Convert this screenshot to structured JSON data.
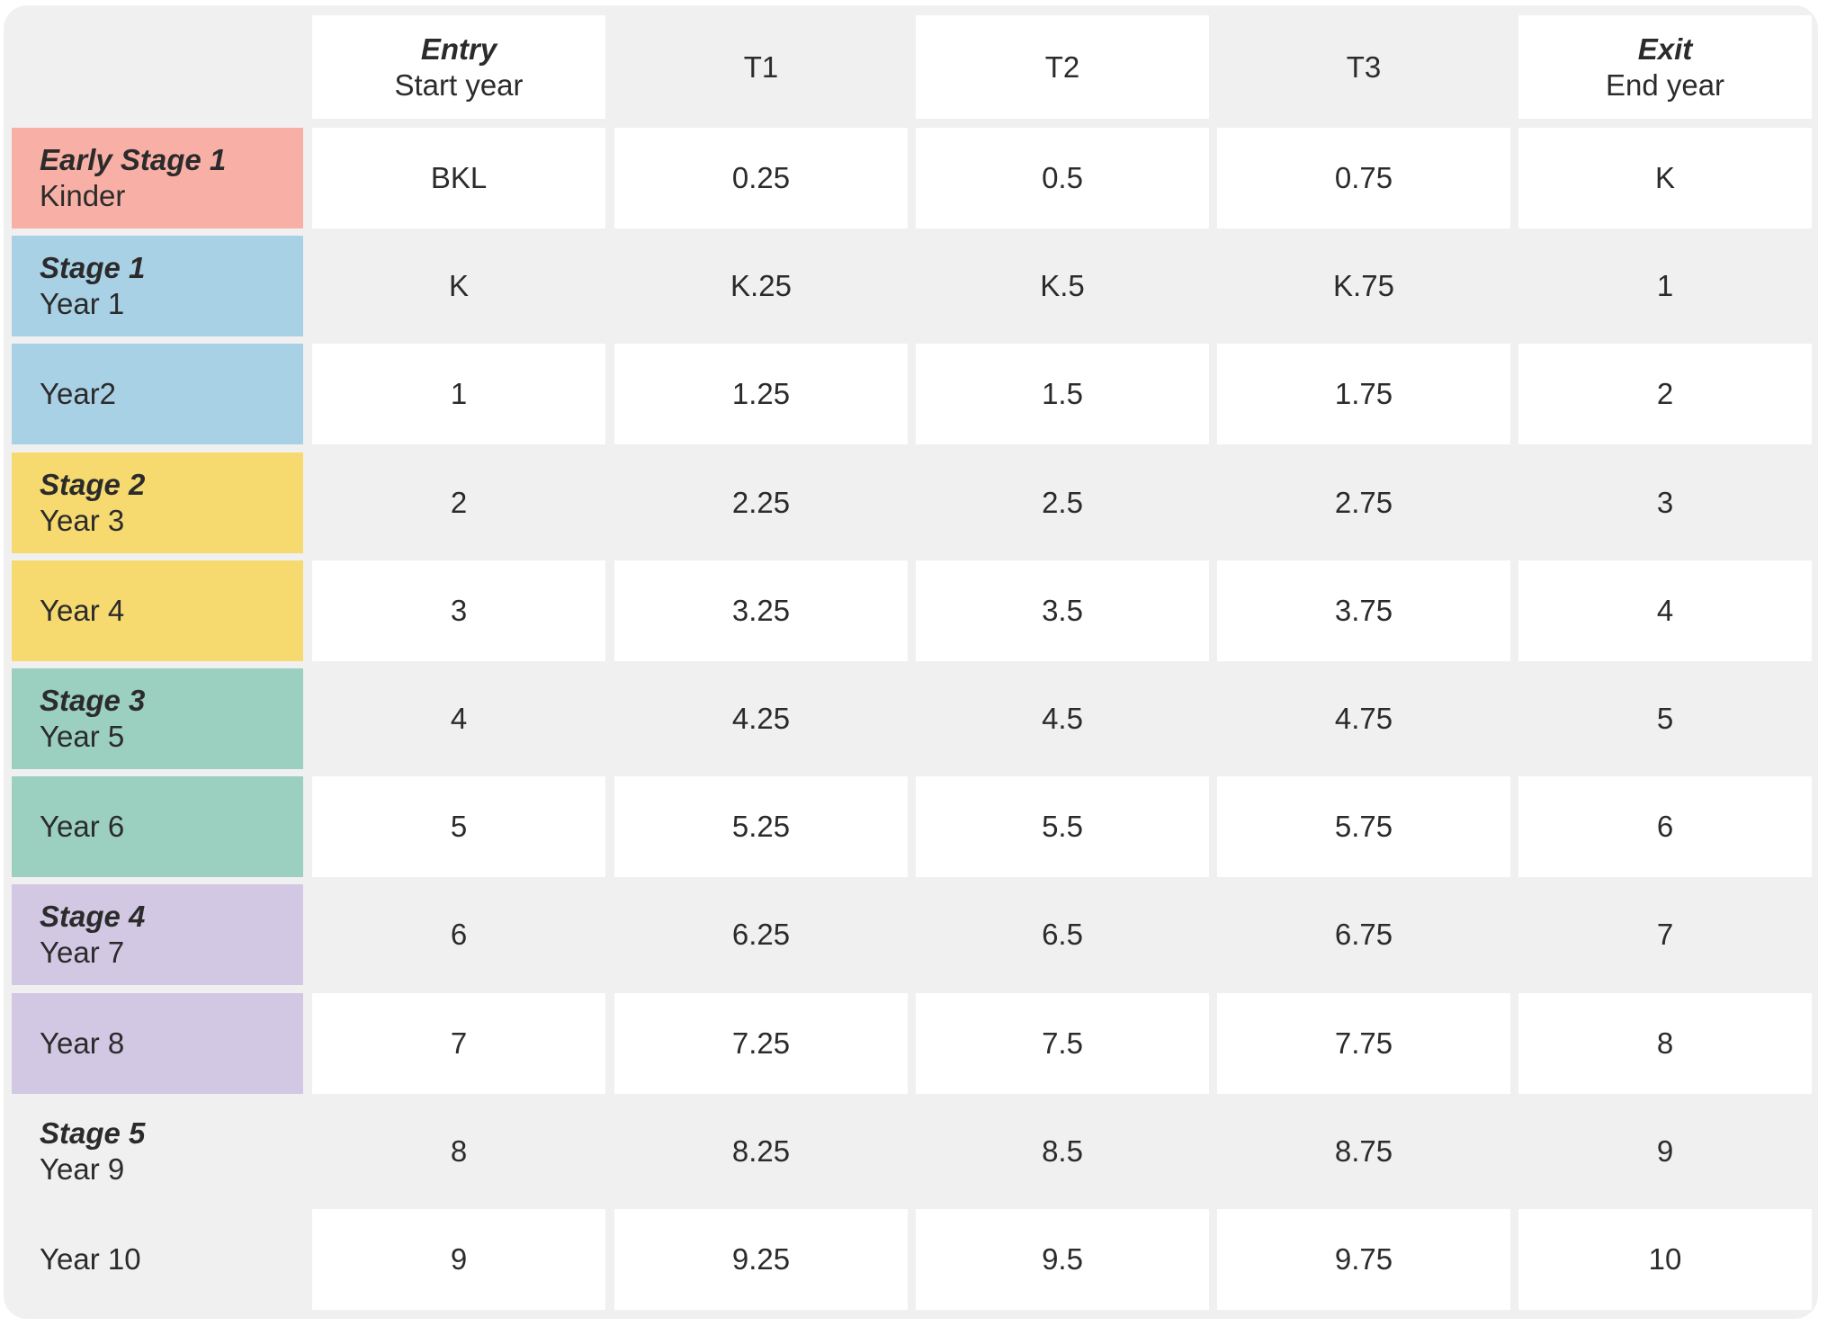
{
  "table": {
    "header": [
      {
        "primary": "Entry",
        "secondary": "Start year"
      },
      {
        "primary": "",
        "secondary": "T1"
      },
      {
        "primary": "",
        "secondary": "T2"
      },
      {
        "primary": "",
        "secondary": "T3"
      },
      {
        "primary": "Exit",
        "secondary": "End year"
      }
    ],
    "rows": [
      {
        "stage": "Early Stage 1",
        "year": "Kinder",
        "stage_color": "#f8b0a6",
        "values": [
          "BKL",
          "0.25",
          "0.5",
          "0.75",
          "K"
        ]
      },
      {
        "stage": "Stage 1",
        "year": "Year 1",
        "stage_color": "#a9d1e5",
        "values": [
          "K",
          "K.25",
          "K.5",
          "K.75",
          "1"
        ]
      },
      {
        "stage": "",
        "year": "Year2",
        "stage_color": "#a9d1e5",
        "values": [
          "1",
          "1.25",
          "1.5",
          "1.75",
          "2"
        ]
      },
      {
        "stage": "Stage 2",
        "year": "Year 3",
        "stage_color": "#f6da70",
        "values": [
          "2",
          "2.25",
          "2.5",
          "2.75",
          "3"
        ]
      },
      {
        "stage": "",
        "year": "Year 4",
        "stage_color": "#f6da70",
        "values": [
          "3",
          "3.25",
          "3.5",
          "3.75",
          "4"
        ]
      },
      {
        "stage": "Stage 3",
        "year": "Year 5",
        "stage_color": "#9bcfc0",
        "values": [
          "4",
          "4.25",
          "4.5",
          "4.75",
          "5"
        ]
      },
      {
        "stage": "",
        "year": "Year 6",
        "stage_color": "#9bcfc0",
        "values": [
          "5",
          "5.25",
          "5.5",
          "5.75",
          "6"
        ]
      },
      {
        "stage": "Stage 4",
        "year": "Year 7",
        "stage_color": "#d2c8e3",
        "values": [
          "6",
          "6.25",
          "6.5",
          "6.75",
          "7"
        ]
      },
      {
        "stage": "",
        "year": "Year 8",
        "stage_color": "#d2c8e3",
        "values": [
          "7",
          "7.25",
          "7.5",
          "7.75",
          "8"
        ]
      },
      {
        "stage": "Stage 5",
        "year": "Year 9",
        "stage_color": "#f0f0f0",
        "values": [
          "8",
          "8.25",
          "8.5",
          "8.75",
          "9"
        ]
      },
      {
        "stage": "",
        "year": "Year 10",
        "stage_color": "#f0f0f0",
        "values": [
          "9",
          "9.25",
          "9.5",
          "9.75",
          "10"
        ]
      }
    ],
    "colors": {
      "frame": "#f0f0f0",
      "cell_white": "#ffffff",
      "cell_grey": "#f0f0f0",
      "text": "#2b2b2b"
    }
  }
}
